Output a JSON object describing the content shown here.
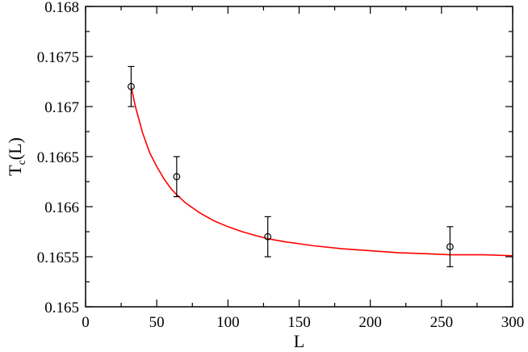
{
  "chart_data": {
    "type": "scatter",
    "xlabel": "L",
    "ylabel": {
      "main": "T",
      "sub": "c",
      "rest": "(L)"
    },
    "xlim": [
      0,
      300
    ],
    "ylim": [
      0.165,
      0.168
    ],
    "xticks": [
      0,
      50,
      100,
      150,
      200,
      250,
      300
    ],
    "yticks": [
      0.165,
      0.1655,
      0.166,
      0.1665,
      0.167,
      0.1675,
      0.168
    ],
    "xtick_labels": [
      "0",
      "50",
      "100",
      "150",
      "200",
      "250",
      "300"
    ],
    "ytick_labels": [
      "0.165",
      "0.1655",
      "0.166",
      "0.1665",
      "0.167",
      "0.1675",
      "0.168"
    ],
    "grid": false,
    "series": [
      {
        "type": "scatter",
        "marker": "open-circle",
        "color": "#000000",
        "points": [
          {
            "x": 32,
            "y": 0.1672,
            "err": 0.0002
          },
          {
            "x": 64,
            "y": 0.1663,
            "err": 0.0002
          },
          {
            "x": 128,
            "y": 0.1657,
            "err": 0.0002
          },
          {
            "x": 256,
            "y": 0.1656,
            "err": 0.0002
          }
        ]
      },
      {
        "type": "line",
        "color": "#ff0000",
        "x": [
          32,
          35,
          40,
          45,
          50,
          55,
          60,
          64,
          70,
          80,
          90,
          100,
          110,
          120,
          128,
          140,
          160,
          180,
          200,
          220,
          240,
          256,
          280,
          300
        ],
        "y": [
          0.1672,
          0.167,
          0.16674,
          0.16654,
          0.1664,
          0.16628,
          0.16618,
          0.16612,
          0.16604,
          0.16594,
          0.16586,
          0.1658,
          0.16575,
          0.16571,
          0.16568,
          0.16565,
          0.16561,
          0.16558,
          0.16556,
          0.16554,
          0.16553,
          0.16552,
          0.16552,
          0.16551
        ]
      }
    ]
  }
}
